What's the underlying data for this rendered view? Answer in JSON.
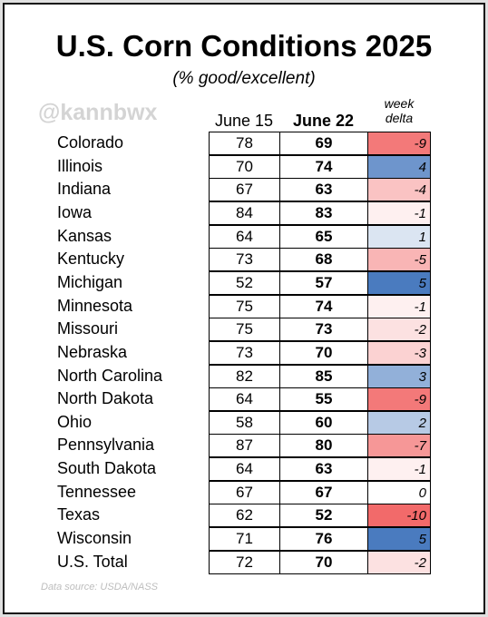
{
  "title": "U.S. Corn Conditions 2025",
  "subtitle": "(% good/excellent)",
  "watermark": "@kannbwx",
  "source": "Data source: USDA/NASS",
  "columns": {
    "june15": "June 15",
    "june22": "June 22",
    "delta_line1": "week",
    "delta_line2": "delta"
  },
  "colors": {
    "negative": "#f26a6a",
    "positive": "#4a7bbf",
    "neutral": "#ffffff"
  },
  "chart_data": {
    "type": "table",
    "title": "U.S. Corn Conditions 2025",
    "subtitle": "(% good/excellent)",
    "columns": [
      "June 15",
      "June 22",
      "week delta"
    ],
    "rows": [
      {
        "state": "Colorado",
        "june15": "78",
        "june22": "69",
        "delta": "-9"
      },
      {
        "state": "Illinois",
        "june15": "70",
        "june22": "74",
        "delta": "4"
      },
      {
        "state": "Indiana",
        "june15": "67",
        "june22": "63",
        "delta": "-4"
      },
      {
        "state": "Iowa",
        "june15": "84",
        "june22": "83",
        "delta": "-1"
      },
      {
        "state": "Kansas",
        "june15": "64",
        "june22": "65",
        "delta": "1"
      },
      {
        "state": "Kentucky",
        "june15": "73",
        "june22": "68",
        "delta": "-5"
      },
      {
        "state": "Michigan",
        "june15": "52",
        "june22": "57",
        "delta": "5"
      },
      {
        "state": "Minnesota",
        "june15": "75",
        "june22": "74",
        "delta": "-1"
      },
      {
        "state": "Missouri",
        "june15": "75",
        "june22": "73",
        "delta": "-2"
      },
      {
        "state": "Nebraska",
        "june15": "73",
        "june22": "70",
        "delta": "-3"
      },
      {
        "state": "North Carolina",
        "june15": "82",
        "june22": "85",
        "delta": "3"
      },
      {
        "state": "North Dakota",
        "june15": "64",
        "june22": "55",
        "delta": "-9"
      },
      {
        "state": "Ohio",
        "june15": "58",
        "june22": "60",
        "delta": "2"
      },
      {
        "state": "Pennsylvania",
        "june15": "87",
        "june22": "80",
        "delta": "-7"
      },
      {
        "state": "South Dakota",
        "june15": "64",
        "june22": "63",
        "delta": "-1"
      },
      {
        "state": "Tennessee",
        "june15": "67",
        "june22": "67",
        "delta": "0"
      },
      {
        "state": "Texas",
        "june15": "62",
        "june22": "52",
        "delta": "-10"
      },
      {
        "state": "Wisconsin",
        "june15": "71",
        "june22": "76",
        "delta": "5"
      },
      {
        "state": "U.S. Total",
        "june15": "72",
        "june22": "70",
        "delta": "-2"
      }
    ]
  }
}
